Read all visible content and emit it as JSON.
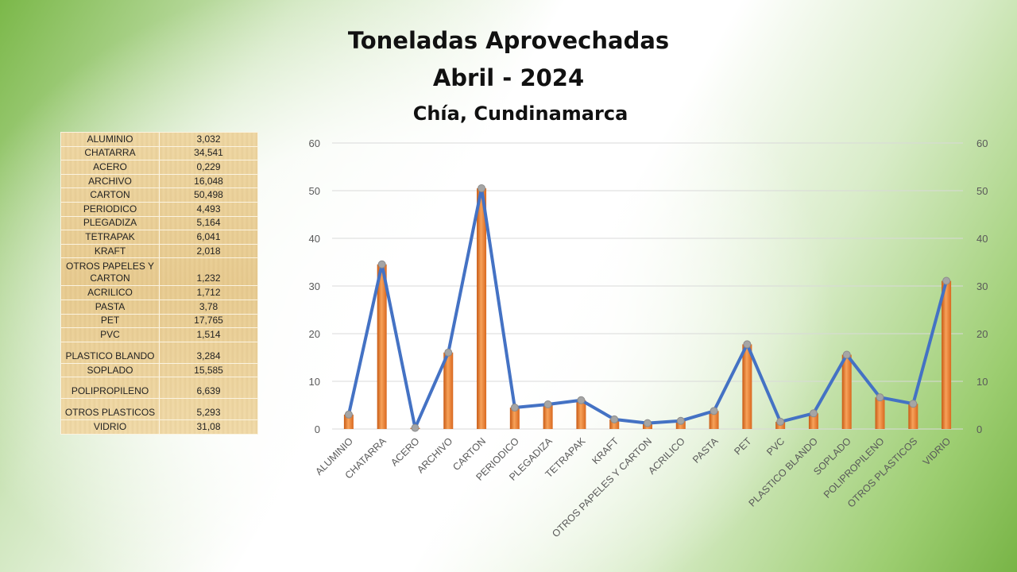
{
  "title_line1": "Toneladas Aprovechadas",
  "title_line2": "Abril - 2024",
  "subtitle": "Chía, Cundinamarca",
  "table": [
    {
      "name": "ALUMINIO",
      "value": "3,032"
    },
    {
      "name": "CHATARRA",
      "value": "34,541"
    },
    {
      "name": "ACERO",
      "value": "0,229"
    },
    {
      "name": "ARCHIVO",
      "value": "16,048"
    },
    {
      "name": "CARTON",
      "value": "50,498"
    },
    {
      "name": "PERIODICO",
      "value": "4,493"
    },
    {
      "name": "PLEGADIZA",
      "value": "5,164"
    },
    {
      "name": "TETRAPAK",
      "value": "6,041"
    },
    {
      "name": "KRAFT",
      "value": "2,018"
    },
    {
      "name": "OTROS PAPELES Y\nCARTON",
      "value": "1,232"
    },
    {
      "name": "ACRILICO",
      "value": "1,712"
    },
    {
      "name": "PASTA",
      "value": "3,78"
    },
    {
      "name": "PET",
      "value": "17,765"
    },
    {
      "name": "PVC",
      "value": "1,514"
    },
    {
      "name": "PLASTICO BLANDO",
      "value": "3,284"
    },
    {
      "name": "SOPLADO",
      "value": "15,585"
    },
    {
      "name": "POLIPROPILENO",
      "value": "6,639"
    },
    {
      "name": "OTROS PLASTICOS",
      "value": "5,293"
    },
    {
      "name": "VIDRIO",
      "value": "31,08"
    }
  ],
  "chart_data": {
    "type": "bar",
    "categories": [
      "ALUMINIO",
      "CHATARRA",
      "ACERO",
      "ARCHIVO",
      "CARTON",
      "PERIODICO",
      "PLEGADIZA",
      "TETRAPAK",
      "KRAFT",
      "OTROS PAPELES Y CARTON",
      "ACRILICO",
      "PASTA",
      "PET",
      "PVC",
      "PLASTICO BLANDO",
      "SOPLADO",
      "POLIPROPILENO",
      "OTROS PLASTICOS",
      "VIDRIO"
    ],
    "series": [
      {
        "type": "bar",
        "color": "#ed7d31",
        "values": [
          3.032,
          34.541,
          0.229,
          16.048,
          50.498,
          4.493,
          5.164,
          6.041,
          2.018,
          1.232,
          1.712,
          3.78,
          17.765,
          1.514,
          3.284,
          15.585,
          6.639,
          5.293,
          31.08
        ]
      },
      {
        "type": "line",
        "color": "#4472c4",
        "marker_color": "#a5a5a5",
        "values": [
          3.032,
          34.541,
          0.229,
          16.048,
          50.498,
          4.493,
          5.164,
          6.041,
          2.018,
          1.232,
          1.712,
          3.78,
          17.765,
          1.514,
          3.284,
          15.585,
          6.639,
          5.293,
          31.08
        ]
      }
    ],
    "ylim": [
      0,
      60
    ],
    "yticks": [
      0,
      10,
      20,
      30,
      40,
      50,
      60
    ],
    "secondary_yticks": [
      0,
      10,
      20,
      30,
      40,
      50,
      60
    ],
    "grid": true,
    "legend": "none"
  }
}
